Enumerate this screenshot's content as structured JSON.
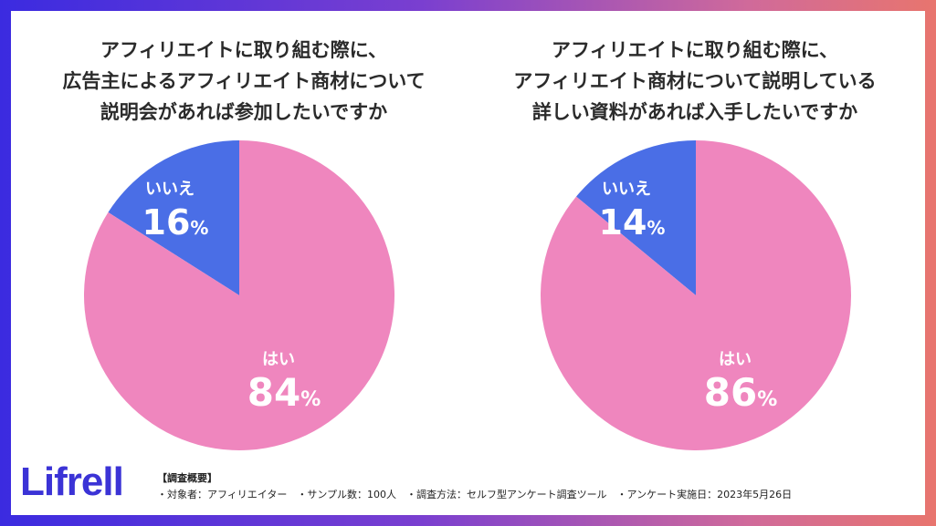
{
  "colors": {
    "yes": "#ef86be",
    "no": "#4a6ee6",
    "label": "#ffffff"
  },
  "chart_data": [
    {
      "type": "pie",
      "title": "アフィリエイトに取り組む際に、\n広告主によるアフィリエイト商材について\n説明会があれば参加したいですか",
      "slices": [
        {
          "label": "いいえ",
          "value": 16,
          "display": "16",
          "unit": "%"
        },
        {
          "label": "はい",
          "value": 84,
          "display": "84",
          "unit": "%"
        }
      ]
    },
    {
      "type": "pie",
      "title": "アフィリエイトに取り組む際に、\nアフィリエイト商材について説明している\n詳しい資料があれば入手したいですか",
      "slices": [
        {
          "label": "いいえ",
          "value": 14,
          "display": "14",
          "unit": "%"
        },
        {
          "label": "はい",
          "value": 86,
          "display": "86",
          "unit": "%"
        }
      ]
    }
  ],
  "logo": "Lifrell",
  "survey": {
    "heading": "【調査概要】",
    "items": "・対象者：アフィリエイター　・サンプル数：100人　・調査方法：セルフ型アンケート調査ツール　・アンケート実施日：2023年5月26日"
  }
}
